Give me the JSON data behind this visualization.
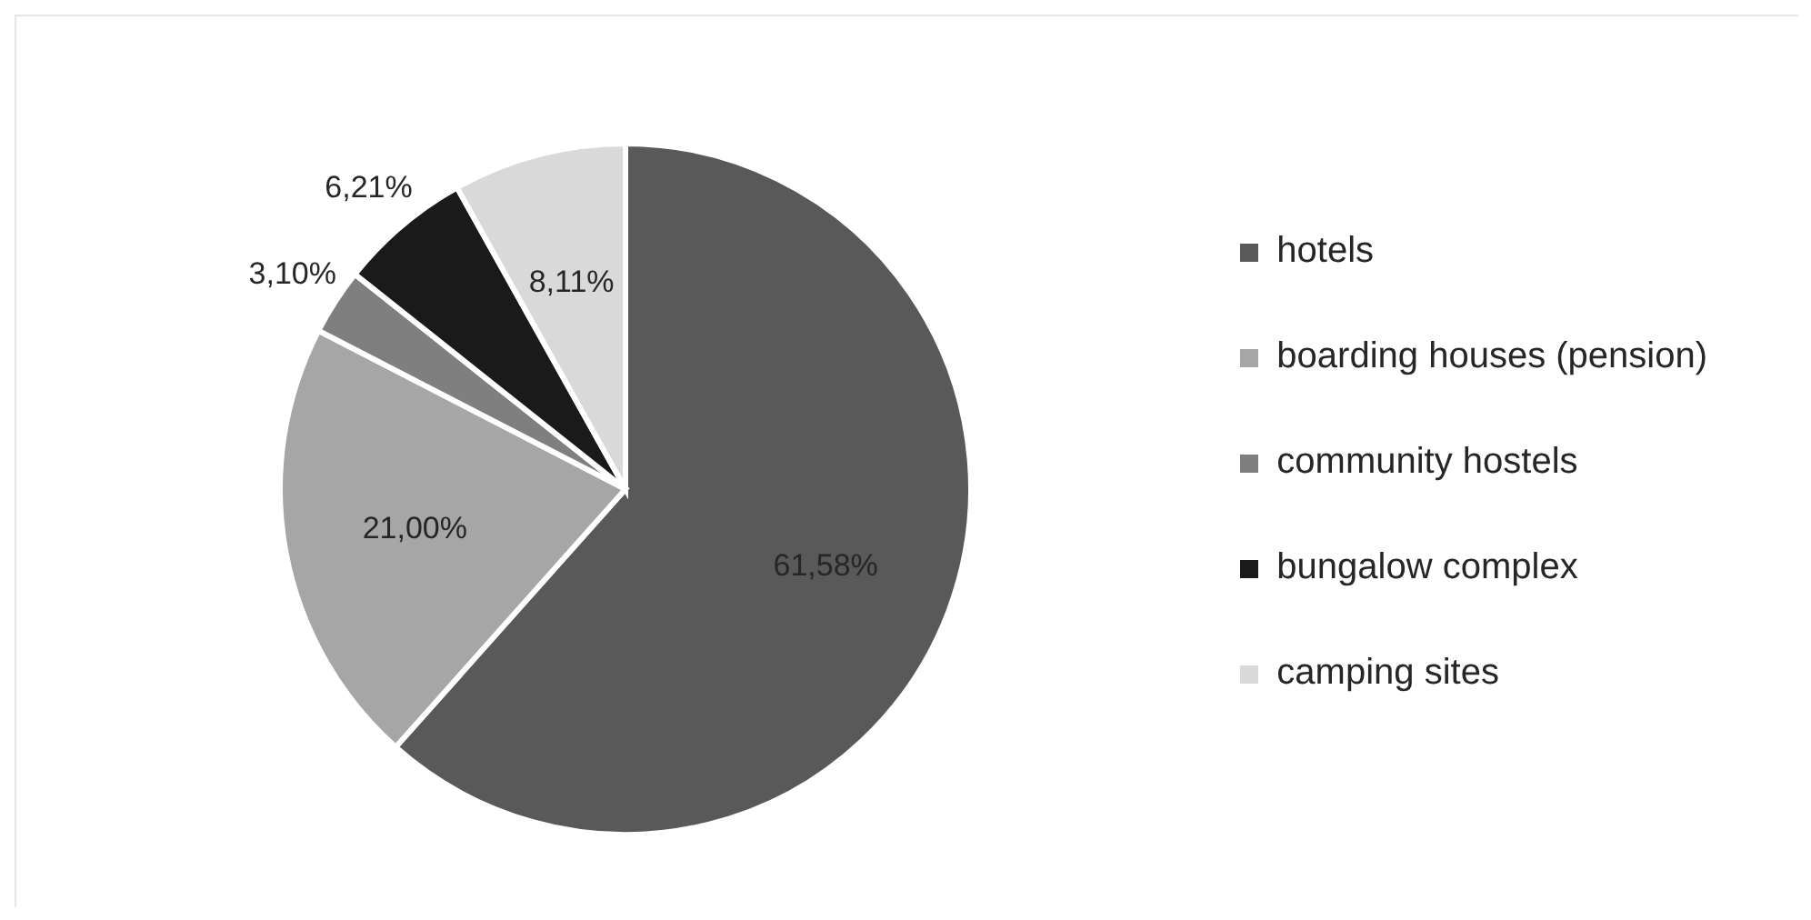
{
  "chart_data": {
    "type": "pie",
    "categories": [
      "hotels",
      "boarding houses (pension)",
      "community hostels",
      "bungalow complex",
      "camping sites"
    ],
    "values": [
      61.58,
      21.0,
      3.1,
      6.21,
      8.11
    ],
    "value_labels": [
      "61,58%",
      "21,00%",
      "3,10%",
      "6,21%",
      "8,11%"
    ],
    "colors": [
      "#595959",
      "#a6a6a6",
      "#7f7f7f",
      "#1a1a1a",
      "#d9d9d9"
    ],
    "legend": "right"
  }
}
